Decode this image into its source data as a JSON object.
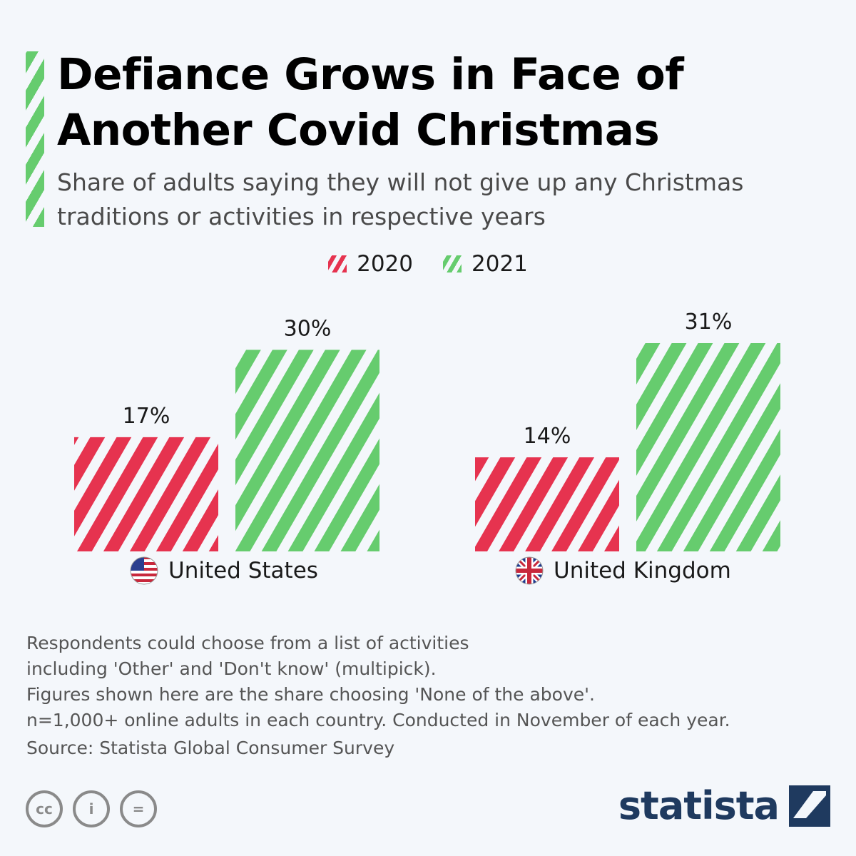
{
  "title": "Defiance Grows in Face of Another Covid Christmas",
  "subtitle": "Share of adults saying they will not give up any Christmas traditions or activities in respective years",
  "legend": [
    {
      "label": "2020",
      "color": "#e6334f"
    },
    {
      "label": "2021",
      "color": "#66cc6e"
    }
  ],
  "chart_data": {
    "type": "bar",
    "categories": [
      "United States",
      "United Kingdom"
    ],
    "series": [
      {
        "name": "2020",
        "color": "#e6334f",
        "values": [
          17,
          14
        ],
        "labels": [
          "17%",
          "14%"
        ]
      },
      {
        "name": "2021",
        "color": "#66cc6e",
        "values": [
          30,
          31
        ],
        "labels": [
          "30%",
          "31%"
        ]
      }
    ],
    "title": "Defiance Grows in Face of Another Covid Christmas",
    "xlabel": "",
    "ylabel": "",
    "ylim": [
      0,
      31
    ],
    "unit": "%",
    "grid": false
  },
  "countries": [
    {
      "label": "United States",
      "flag": "us-flag-icon"
    },
    {
      "label": "United Kingdom",
      "flag": "uk-flag-icon"
    }
  ],
  "notes": [
    "Respondents could choose from a list of activities",
    "including 'Other' and 'Don't know' (multipick).",
    "Figures shown here are the share choosing 'None of the above'.",
    "n=1,000+ online adults in each country. Conducted in November of each year."
  ],
  "source": "Source: Statista Global Consumer Survey",
  "license_icons": [
    "cc-icon",
    "attribution-icon",
    "no-derivatives-icon"
  ],
  "license_glyphs": [
    "cc",
    "i",
    "="
  ],
  "brand": "statista"
}
